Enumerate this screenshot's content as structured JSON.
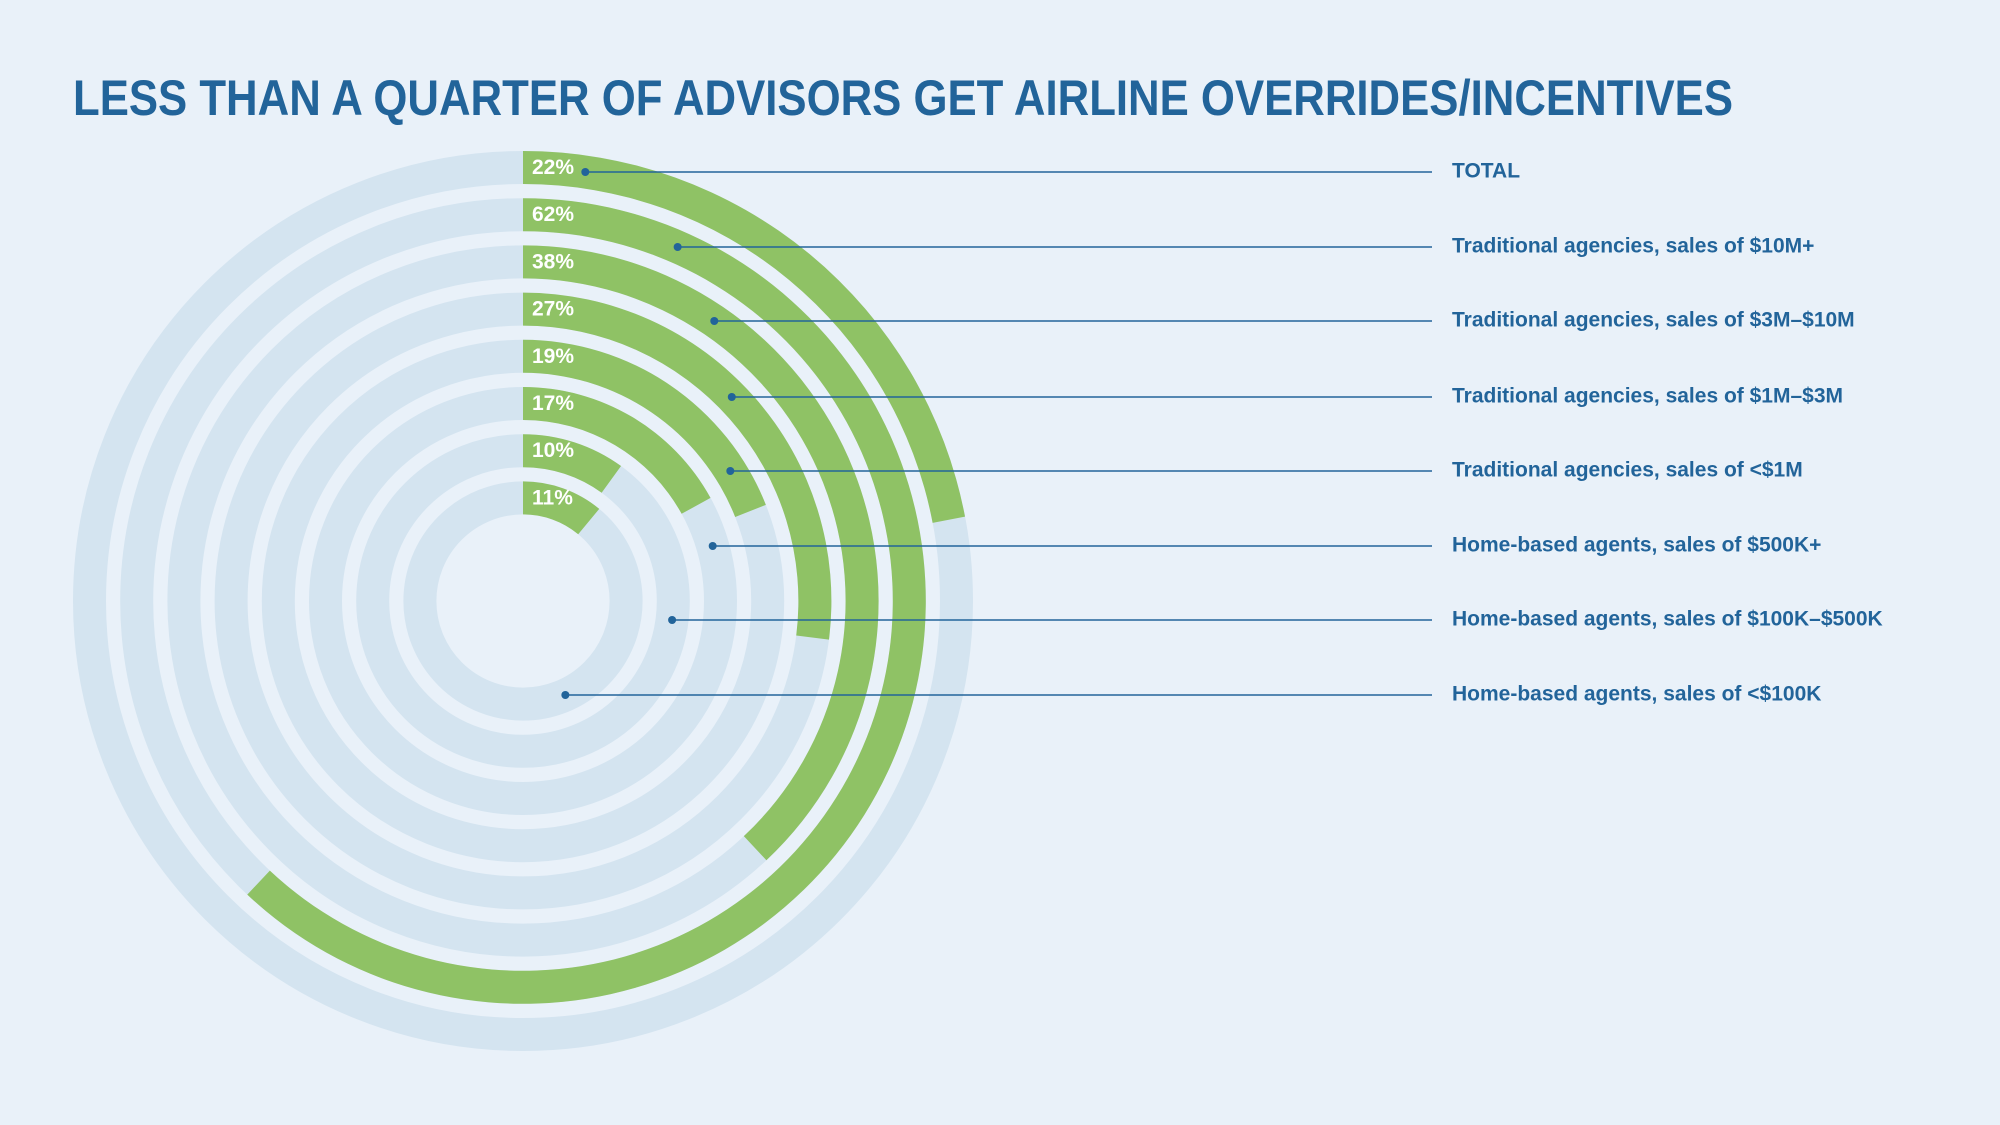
{
  "chart_data": {
    "type": "radial-bar",
    "title": "LESS THAN A QUARTER OF ADVISORS GET AIRLINE OVERRIDES/INCENTIVES",
    "categories": [
      "TOTAL",
      "Traditional agencies, sales of $10M+",
      "Traditional agencies, sales of $3M–$10M",
      "Traditional agencies, sales of $1M–$3M",
      "Traditional agencies, sales of <$1M",
      "Home-based agents, sales of $500K+",
      "Home-based agents, sales of $100K–$500K",
      "Home-based agents, sales of <$100K"
    ],
    "values": [
      22,
      62,
      38,
      27,
      19,
      17,
      10,
      11
    ],
    "value_labels": [
      "22%",
      "62%",
      "38%",
      "27%",
      "19%",
      "17%",
      "10%",
      "11%"
    ],
    "ylim": [
      0,
      100
    ],
    "color": "#8fc265",
    "track_color": "#d4e4f0"
  }
}
